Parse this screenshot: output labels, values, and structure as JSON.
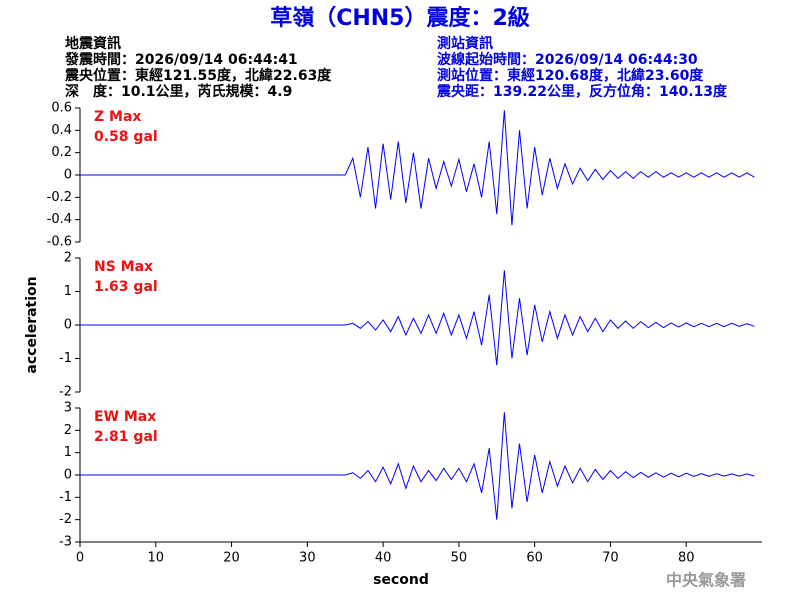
{
  "header": {
    "title": "草嶺（CHN5）震度：2級",
    "event": {
      "heading": "地震資訊",
      "lines": [
        "發震時間：2026/09/14 06:44:41",
        "震央位置：東經121.55度，北緯22.63度",
        "深　度：10.1公里，芮氏規模：4.9"
      ]
    },
    "station": {
      "heading": "測站資訊",
      "lines": [
        "波線起始時間：2026/09/14 06:44:30",
        "測站位置：東經120.68度，北緯23.60度",
        "震央距：139.22公里，反方位角：140.13度"
      ]
    }
  },
  "footer": "中央氣象署",
  "chart_data": [
    {
      "type": "line",
      "label": "Z Max",
      "max_label": "0.58 gal",
      "color": "#0000ff",
      "annotation_color": "#ee1111",
      "x": [
        0,
        35,
        36,
        37,
        38,
        39,
        40,
        41,
        42,
        43,
        44,
        45,
        46,
        47,
        48,
        49,
        50,
        51,
        52,
        53,
        54,
        55,
        56,
        57,
        58,
        59,
        60,
        61,
        62,
        63,
        64,
        65,
        66,
        67,
        68,
        69,
        70,
        71,
        72,
        73,
        74,
        75,
        76,
        77,
        78,
        79,
        80,
        81,
        82,
        83,
        84,
        85,
        86,
        87,
        88,
        89
      ],
      "values": [
        0,
        0,
        0.15,
        -0.2,
        0.25,
        -0.3,
        0.28,
        -0.22,
        0.3,
        -0.25,
        0.2,
        -0.3,
        0.15,
        -0.12,
        0.12,
        -0.1,
        0.14,
        -0.15,
        0.1,
        -0.2,
        0.3,
        -0.35,
        0.58,
        -0.45,
        0.4,
        -0.3,
        0.25,
        -0.18,
        0.15,
        -0.12,
        0.1,
        -0.08,
        0.06,
        -0.05,
        0.05,
        -0.04,
        0.04,
        -0.03,
        0.03,
        -0.03,
        0.03,
        -0.02,
        0.03,
        -0.02,
        0.02,
        -0.02,
        0.02,
        -0.02,
        0.02,
        -0.02,
        0.02,
        -0.02,
        0.02,
        -0.02,
        0.02,
        -0.02
      ],
      "xlim": [
        0,
        90
      ],
      "ylim": [
        -0.6,
        0.6
      ],
      "yticks": [
        -0.6,
        -0.4,
        -0.2,
        0,
        0.2,
        0.4,
        0.6
      ]
    },
    {
      "type": "line",
      "label": "NS Max",
      "max_label": "1.63 gal",
      "color": "#0000ff",
      "annotation_color": "#ee1111",
      "ylabel": "acceleration",
      "x": [
        0,
        35,
        36,
        37,
        38,
        39,
        40,
        41,
        42,
        43,
        44,
        45,
        46,
        47,
        48,
        49,
        50,
        51,
        52,
        53,
        54,
        55,
        56,
        57,
        58,
        59,
        60,
        61,
        62,
        63,
        64,
        65,
        66,
        67,
        68,
        69,
        70,
        71,
        72,
        73,
        74,
        75,
        76,
        77,
        78,
        79,
        80,
        81,
        82,
        83,
        84,
        85,
        86,
        87,
        88,
        89
      ],
      "values": [
        0,
        0,
        0.05,
        -0.1,
        0.1,
        -0.15,
        0.15,
        -0.2,
        0.25,
        -0.3,
        0.2,
        -0.25,
        0.3,
        -0.25,
        0.35,
        -0.3,
        0.3,
        -0.4,
        0.4,
        -0.6,
        0.9,
        -1.2,
        1.63,
        -1.0,
        0.8,
        -0.9,
        0.6,
        -0.5,
        0.4,
        -0.4,
        0.3,
        -0.3,
        0.25,
        -0.2,
        0.2,
        -0.2,
        0.15,
        -0.1,
        0.12,
        -0.1,
        0.1,
        -0.08,
        0.08,
        -0.08,
        0.06,
        -0.06,
        0.06,
        -0.05,
        0.05,
        -0.05,
        0.05,
        -0.05,
        0.05,
        -0.04,
        0.04,
        -0.04
      ],
      "xlim": [
        0,
        90
      ],
      "ylim": [
        -2,
        2
      ],
      "yticks": [
        -2,
        -1,
        0,
        1,
        2
      ]
    },
    {
      "type": "line",
      "label": "EW Max",
      "max_label": "2.81 gal",
      "color": "#0000ff",
      "annotation_color": "#ee1111",
      "xlabel": "second",
      "x": [
        0,
        35,
        36,
        37,
        38,
        39,
        40,
        41,
        42,
        43,
        44,
        45,
        46,
        47,
        48,
        49,
        50,
        51,
        52,
        53,
        54,
        55,
        56,
        57,
        58,
        59,
        60,
        61,
        62,
        63,
        64,
        65,
        66,
        67,
        68,
        69,
        70,
        71,
        72,
        73,
        74,
        75,
        76,
        77,
        78,
        79,
        80,
        81,
        82,
        83,
        84,
        85,
        86,
        87,
        88,
        89
      ],
      "values": [
        0,
        0,
        0.1,
        -0.15,
        0.2,
        -0.3,
        0.35,
        -0.4,
        0.5,
        -0.6,
        0.4,
        -0.3,
        0.2,
        -0.25,
        0.3,
        -0.2,
        0.3,
        -0.3,
        0.5,
        -0.8,
        1.2,
        -2.0,
        2.81,
        -1.5,
        1.4,
        -1.2,
        0.9,
        -0.8,
        0.6,
        -0.5,
        0.4,
        -0.35,
        0.3,
        -0.3,
        0.25,
        -0.2,
        0.2,
        -0.15,
        0.15,
        -0.12,
        0.12,
        -0.1,
        0.1,
        -0.1,
        0.08,
        -0.08,
        0.08,
        -0.06,
        0.06,
        -0.06,
        0.06,
        -0.05,
        0.05,
        -0.05,
        0.05,
        -0.05
      ],
      "xlim": [
        0,
        90
      ],
      "ylim": [
        -3,
        3
      ],
      "yticks": [
        -3,
        -2,
        -1,
        0,
        1,
        2,
        3
      ],
      "xticks": [
        0,
        10,
        20,
        30,
        40,
        50,
        60,
        70,
        80
      ]
    }
  ]
}
